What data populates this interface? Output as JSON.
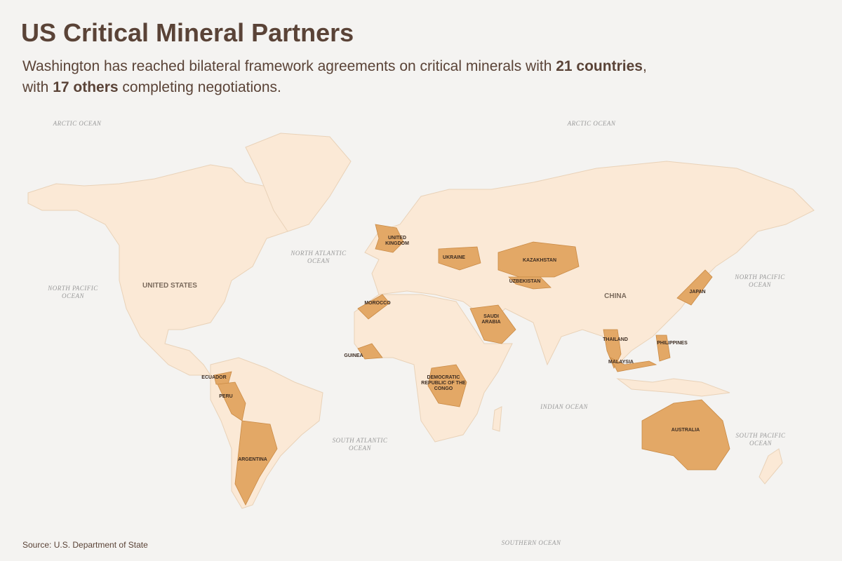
{
  "title": "US Critical Mineral Partners",
  "subtitle": [
    "Washington has reached bilateral framework agreements on critical minerals with ",
    "21 countries",
    ",",
    "with ",
    "17 others",
    " completing negotiations."
  ],
  "oceans": [
    [
      "ARCTIC OCEAN"
    ],
    [
      "ARCTIC OCEAN"
    ],
    [
      "NORTH ATLANTIC",
      "OCEAN"
    ],
    [
      "NORTH PACIFIC",
      "OCEAN"
    ],
    [
      "NORTH PACIFIC",
      "OCEAN"
    ],
    [
      "SOUTH ATLANTIC",
      "OCEAN"
    ],
    [
      "INDIAN OCEAN"
    ],
    [
      "SOUTH PACIFIC",
      "OCEAN"
    ],
    [
      "SOUTHERN OCEAN"
    ]
  ],
  "base_labels": [
    "UNITED STATES",
    "CHINA"
  ],
  "partner_labels": [
    [
      "UNITED",
      "KINGDOM"
    ],
    [
      "UKRAINE"
    ],
    [
      "KAZAKHSTAN"
    ],
    [
      "UZBEKISTAN"
    ],
    [
      "MOROCCO"
    ],
    [
      "SAUDI",
      "ARABIA"
    ],
    [
      "GUINEA"
    ],
    [
      "DEMOCRATIC",
      "REPUBLIC OF THE",
      "CONGO"
    ],
    [
      "ECUADOR"
    ],
    [
      "PERU"
    ],
    [
      "ARGENTINA"
    ],
    [
      "THAILAND"
    ],
    [
      "MALAYSIA"
    ],
    [
      "PHILIPPINES"
    ],
    [
      "JAPAN"
    ],
    [
      "AUSTRALIA"
    ]
  ],
  "source": "Source: U.S. Department of State"
}
